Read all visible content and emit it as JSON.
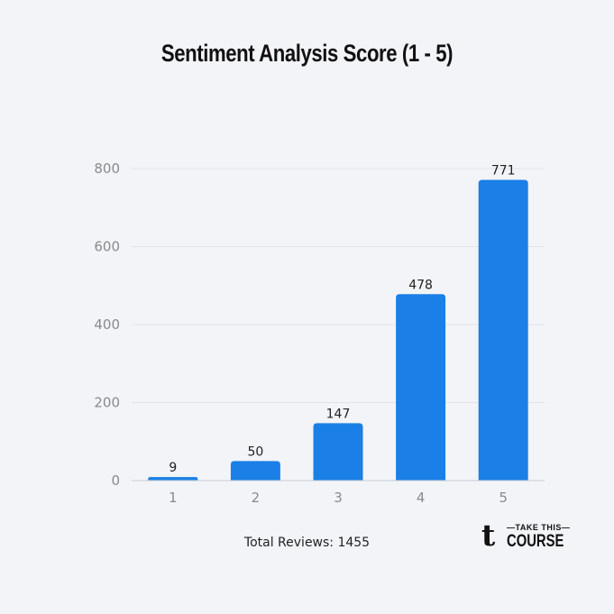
{
  "chart_data": {
    "type": "bar",
    "title": "Sentiment Analysis Score (1 - 5)",
    "categories": [
      "1",
      "2",
      "3",
      "4",
      "5"
    ],
    "values": [
      9,
      50,
      147,
      478,
      771
    ],
    "yticks": [
      0,
      200,
      400,
      600,
      800
    ],
    "ylim": [
      0,
      800
    ],
    "xlabel": "",
    "ylabel": "",
    "grid": true,
    "bar_color": "#1a7fe6"
  },
  "footer": {
    "total_reviews": "Total Reviews: 1455"
  },
  "logo": {
    "top_text": "—TAKE THIS—",
    "bottom_text": "COURSE",
    "mark": "t"
  }
}
